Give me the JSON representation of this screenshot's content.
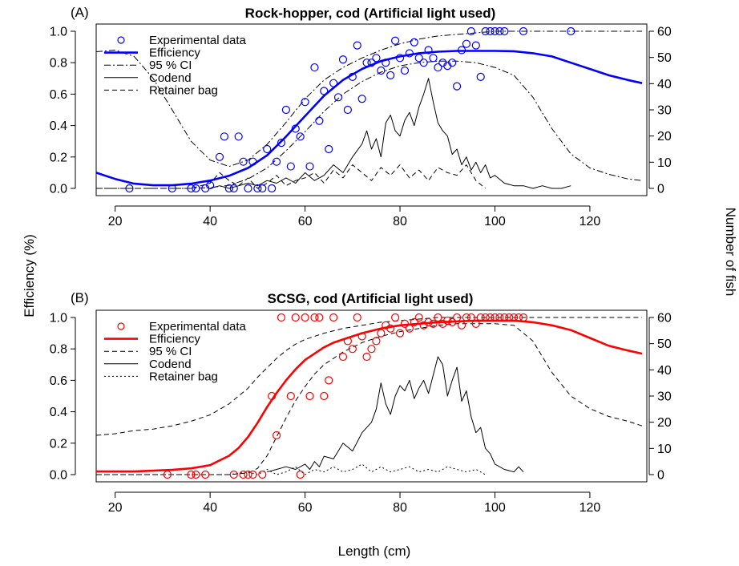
{
  "figure": {
    "xlabel": "Length (cm)",
    "ylabel_left": "Efficiency (%)",
    "ylabel_right": "Number of fish"
  },
  "legend_labels": [
    "Experimental data",
    "Efficiency",
    "95 % CI",
    "Codend",
    "Retainer bag"
  ],
  "chart_data": [
    {
      "type": "line",
      "panel_tag": "(A)",
      "title": "Rock-hopper, cod (Artificial light used)",
      "xlim": [
        16,
        132
      ],
      "xticks": [
        20,
        40,
        60,
        80,
        100,
        120
      ],
      "ylim_left": [
        0,
        1
      ],
      "yticks_left": [
        "0.0",
        "0.2",
        "0.4",
        "0.6",
        "0.8",
        "1.0"
      ],
      "ylim_right": [
        0,
        60
      ],
      "yticks_right": [
        "0",
        "10",
        "20",
        "30",
        "40",
        "50",
        "60"
      ],
      "colors": {
        "efficiency": "#0000ff",
        "points": "#0000ff"
      },
      "ci_style": "dotdash",
      "codend_style": "solid",
      "retainer_style": "dashed",
      "series": [
        {
          "name": "Efficiency",
          "axis": "left",
          "x": [
            16,
            20,
            24,
            28,
            32,
            36,
            40,
            44,
            48,
            52,
            56,
            60,
            64,
            68,
            72,
            76,
            80,
            84,
            88,
            92,
            96,
            100,
            104,
            108,
            112,
            116,
            120,
            124,
            128,
            131
          ],
          "y": [
            0.1,
            0.06,
            0.03,
            0.02,
            0.02,
            0.03,
            0.05,
            0.08,
            0.13,
            0.21,
            0.33,
            0.46,
            0.59,
            0.69,
            0.76,
            0.81,
            0.84,
            0.86,
            0.87,
            0.875,
            0.875,
            0.875,
            0.873,
            0.86,
            0.84,
            0.8,
            0.76,
            0.72,
            0.69,
            0.67
          ]
        },
        {
          "name": "95 % CI (upper)",
          "axis": "left",
          "x": [
            16,
            20,
            24,
            28,
            32,
            36,
            40,
            44,
            48,
            52,
            56,
            60,
            64,
            68,
            72,
            76,
            80,
            84,
            88,
            92,
            96,
            100,
            104,
            108,
            112,
            116,
            120,
            124,
            128,
            131
          ],
          "y": [
            0.87,
            0.88,
            0.84,
            0.7,
            0.5,
            0.3,
            0.18,
            0.14,
            0.18,
            0.28,
            0.42,
            0.57,
            0.69,
            0.77,
            0.83,
            0.88,
            0.92,
            0.95,
            0.97,
            0.98,
            0.99,
            1.0,
            1.0,
            1.0,
            1.0,
            1.0,
            1.0,
            1.0,
            1.0,
            1.0
          ]
        },
        {
          "name": "95 % CI (lower)",
          "axis": "left",
          "x": [
            16,
            20,
            24,
            28,
            32,
            36,
            40,
            44,
            48,
            52,
            56,
            60,
            64,
            68,
            72,
            76,
            80,
            84,
            88,
            92,
            96,
            100,
            104,
            108,
            112,
            116,
            120,
            124,
            128,
            131
          ],
          "y": [
            0,
            0,
            0,
            0,
            0,
            0,
            0.005,
            0.02,
            0.06,
            0.13,
            0.24,
            0.36,
            0.49,
            0.6,
            0.68,
            0.74,
            0.78,
            0.8,
            0.81,
            0.81,
            0.8,
            0.77,
            0.72,
            0.58,
            0.38,
            0.22,
            0.13,
            0.09,
            0.06,
            0.05
          ]
        },
        {
          "name": "Codend",
          "axis": "right",
          "x": [
            40,
            42,
            44,
            46,
            48,
            50,
            52,
            54,
            56,
            58,
            60,
            62,
            64,
            66,
            68,
            70,
            72,
            73,
            74,
            75,
            76,
            77,
            78,
            79,
            80,
            81,
            82,
            83,
            84,
            85,
            86,
            87,
            88,
            89,
            90,
            91,
            92,
            93,
            94,
            95,
            96,
            97,
            98,
            99,
            100,
            102,
            104,
            106,
            108,
            110,
            112,
            114,
            116
          ],
          "y": [
            0,
            1,
            0,
            1,
            2,
            1,
            3,
            2,
            4,
            2,
            6,
            3,
            5,
            9,
            6,
            12,
            17,
            22,
            15,
            19,
            12,
            25,
            28,
            22,
            20,
            26,
            29,
            24,
            31,
            36,
            42,
            33,
            25,
            22,
            20,
            13,
            15,
            9,
            12,
            7,
            10,
            6,
            9,
            4,
            5,
            2,
            1,
            1,
            0,
            1,
            0,
            0,
            1
          ]
        },
        {
          "name": "Retainer bag",
          "axis": "right",
          "x": [
            16,
            20,
            24,
            28,
            32,
            36,
            40,
            42,
            44,
            46,
            48,
            50,
            52,
            54,
            56,
            58,
            60,
            62,
            64,
            66,
            68,
            70,
            72,
            74,
            76,
            78,
            80,
            82,
            84,
            86,
            88,
            90,
            92,
            94,
            96,
            98
          ],
          "y": [
            0,
            0,
            0,
            0,
            0,
            0,
            2,
            6,
            3,
            1,
            4,
            0,
            2,
            5,
            1,
            3,
            4,
            6,
            2,
            7,
            4,
            9,
            6,
            3,
            8,
            5,
            9,
            4,
            7,
            3,
            8,
            6,
            5,
            9,
            3,
            0
          ]
        },
        {
          "name": "Experimental data",
          "axis": "left",
          "marker": "open-circle",
          "x": [
            23,
            32,
            36,
            37,
            39,
            40,
            42,
            43,
            44,
            45,
            46,
            47,
            48,
            49,
            50,
            51,
            52,
            53,
            54,
            55,
            56,
            57,
            58,
            59,
            60,
            61,
            62,
            63,
            64,
            65,
            66,
            67,
            68,
            69,
            70,
            71,
            72,
            73,
            74,
            75,
            76,
            77,
            78,
            79,
            80,
            81,
            82,
            83,
            84,
            85,
            86,
            87,
            88,
            89,
            90,
            91,
            92,
            93,
            94,
            95,
            96,
            97,
            98,
            99,
            100,
            101,
            102,
            106,
            116
          ],
          "y": [
            0,
            0,
            0,
            0,
            0,
            0.02,
            0.2,
            0.33,
            0,
            0,
            0.33,
            0.17,
            0,
            0.17,
            0,
            0,
            0.25,
            0,
            0.17,
            0.29,
            0.5,
            0.14,
            0.38,
            0.33,
            0.55,
            0.14,
            0.77,
            0.43,
            0.62,
            0.25,
            0.67,
            0.58,
            0.82,
            0.5,
            0.71,
            0.91,
            0.57,
            0.8,
            0.8,
            0.83,
            0.75,
            0.8,
            0.72,
            0.94,
            0.83,
            0.75,
            0.86,
            0.93,
            0.83,
            0.8,
            0.88,
            0.83,
            0.77,
            0.8,
            0.78,
            0.8,
            0.65,
            0.88,
            0.92,
            1.0,
            0.91,
            0.71,
            1.0,
            1.0,
            1.0,
            1.0,
            1.0,
            1.0,
            1.0
          ]
        }
      ]
    },
    {
      "type": "line",
      "panel_tag": "(B)",
      "title": "SCSG, cod (Artificial light used)",
      "xlim": [
        16,
        132
      ],
      "xticks": [
        20,
        40,
        60,
        80,
        100,
        120
      ],
      "ylim_left": [
        0,
        1
      ],
      "yticks_left": [
        "0.0",
        "0.2",
        "0.4",
        "0.6",
        "0.8",
        "1.0"
      ],
      "ylim_right": [
        0,
        60
      ],
      "yticks_right": [
        "0",
        "10",
        "20",
        "30",
        "40",
        "50",
        "60"
      ],
      "colors": {
        "efficiency": "#ff0000",
        "points": "#ff0000"
      },
      "ci_style": "dashed",
      "codend_style": "solid",
      "retainer_style": "dotted",
      "series": [
        {
          "name": "Efficiency",
          "axis": "left",
          "x": [
            16,
            20,
            24,
            28,
            32,
            36,
            40,
            44,
            46,
            48,
            50,
            52,
            54,
            56,
            58,
            60,
            62,
            64,
            66,
            68,
            70,
            72,
            76,
            80,
            84,
            88,
            92,
            96,
            100,
            104,
            108,
            112,
            116,
            120,
            124,
            128,
            131
          ],
          "y": [
            0.02,
            0.02,
            0.02,
            0.025,
            0.03,
            0.04,
            0.06,
            0.12,
            0.17,
            0.24,
            0.33,
            0.43,
            0.52,
            0.6,
            0.67,
            0.73,
            0.77,
            0.81,
            0.84,
            0.86,
            0.88,
            0.9,
            0.93,
            0.95,
            0.96,
            0.97,
            0.975,
            0.98,
            0.98,
            0.98,
            0.97,
            0.95,
            0.92,
            0.87,
            0.82,
            0.79,
            0.77
          ]
        },
        {
          "name": "95 % CI (upper)",
          "axis": "left",
          "x": [
            16,
            20,
            24,
            28,
            32,
            36,
            40,
            44,
            48,
            50,
            52,
            54,
            56,
            58,
            60,
            62,
            64,
            68,
            72,
            76,
            80,
            84,
            88,
            92,
            96,
            100,
            104,
            108,
            112,
            116,
            120,
            124,
            128,
            131
          ],
          "y": [
            0.25,
            0.26,
            0.28,
            0.29,
            0.31,
            0.34,
            0.38,
            0.45,
            0.55,
            0.62,
            0.68,
            0.74,
            0.79,
            0.83,
            0.86,
            0.88,
            0.9,
            0.93,
            0.95,
            0.97,
            0.98,
            0.99,
            1.0,
            1.0,
            1.0,
            1.0,
            1.0,
            1.0,
            1.0,
            1.0,
            1.0,
            1.0,
            1.0,
            1.0
          ]
        },
        {
          "name": "95 % CI (lower)",
          "axis": "left",
          "x": [
            16,
            20,
            24,
            28,
            32,
            36,
            40,
            44,
            48,
            50,
            52,
            54,
            56,
            58,
            60,
            62,
            64,
            68,
            72,
            76,
            80,
            84,
            88,
            92,
            96,
            100,
            104,
            108,
            112,
            116,
            120,
            124,
            128,
            131
          ],
          "y": [
            0,
            0,
            0,
            0,
            0,
            0,
            0,
            0,
            0.01,
            0.04,
            0.12,
            0.24,
            0.36,
            0.47,
            0.56,
            0.64,
            0.7,
            0.78,
            0.84,
            0.88,
            0.91,
            0.93,
            0.95,
            0.96,
            0.96,
            0.96,
            0.95,
            0.85,
            0.65,
            0.5,
            0.42,
            0.37,
            0.34,
            0.31
          ]
        },
        {
          "name": "Codend",
          "axis": "right",
          "x": [
            52,
            54,
            56,
            58,
            60,
            61,
            62,
            63,
            64,
            66,
            68,
            70,
            72,
            74,
            75,
            76,
            77,
            78,
            79,
            80,
            81,
            82,
            83,
            84,
            85,
            86,
            87,
            88,
            89,
            90,
            91,
            92,
            93,
            94,
            95,
            96,
            97,
            98,
            99,
            100,
            102,
            104,
            105,
            106
          ],
          "y": [
            1,
            2,
            3,
            2,
            4,
            2,
            5,
            3,
            7,
            6,
            12,
            9,
            16,
            20,
            25,
            35,
            27,
            23,
            30,
            34,
            32,
            36,
            29,
            33,
            36,
            31,
            38,
            45,
            42,
            30,
            36,
            41,
            28,
            32,
            22,
            16,
            18,
            10,
            8,
            4,
            2,
            1,
            3,
            1
          ]
        },
        {
          "name": "Retainer bag",
          "axis": "right",
          "x": [
            16,
            20,
            24,
            28,
            32,
            36,
            40,
            44,
            48,
            50,
            52,
            54,
            56,
            58,
            60,
            62,
            64,
            66,
            68,
            70,
            72,
            74,
            76,
            78,
            80,
            82,
            84,
            86,
            88,
            90,
            92,
            94,
            96,
            98
          ],
          "y": [
            0,
            0,
            0,
            0,
            0,
            0,
            0,
            0,
            1,
            0,
            2,
            0,
            1,
            3,
            0,
            2,
            1,
            3,
            1,
            2,
            4,
            1,
            3,
            1,
            2,
            3,
            1,
            2,
            1,
            3,
            2,
            1,
            2,
            0
          ]
        },
        {
          "name": "Experimental data",
          "axis": "left",
          "marker": "open-circle",
          "x": [
            31,
            36,
            37,
            39,
            45,
            47,
            48,
            49,
            51,
            53,
            54,
            55,
            57,
            58,
            59,
            60,
            61,
            62,
            63,
            64,
            65,
            66,
            68,
            69,
            70,
            71,
            72,
            73,
            74,
            75,
            76,
            77,
            78,
            79,
            80,
            81,
            82,
            83,
            84,
            85,
            86,
            87,
            88,
            89,
            90,
            91,
            92,
            93,
            94,
            95,
            96,
            97,
            98,
            99,
            100,
            101,
            102,
            103,
            104,
            105,
            106
          ],
          "y": [
            0,
            0,
            0,
            0,
            0,
            0,
            0,
            0,
            0,
            0.5,
            0.25,
            1.0,
            0.5,
            1.0,
            0,
            1.0,
            0.5,
            1.0,
            1.0,
            0.5,
            0.6,
            1.0,
            0.75,
            0.85,
            0.8,
            1.0,
            0.88,
            0.75,
            0.8,
            0.85,
            0.9,
            0.95,
            0.93,
            1.0,
            0.9,
            0.96,
            0.93,
            0.97,
            1.0,
            0.95,
            0.97,
            0.96,
            1.0,
            0.96,
            0.98,
            0.97,
            1.0,
            0.95,
            1.0,
            1.0,
            0.96,
            1.0,
            1.0,
            1.0,
            1.0,
            1.0,
            1.0,
            1.0,
            1.0,
            1.0,
            1.0
          ]
        }
      ]
    }
  ]
}
